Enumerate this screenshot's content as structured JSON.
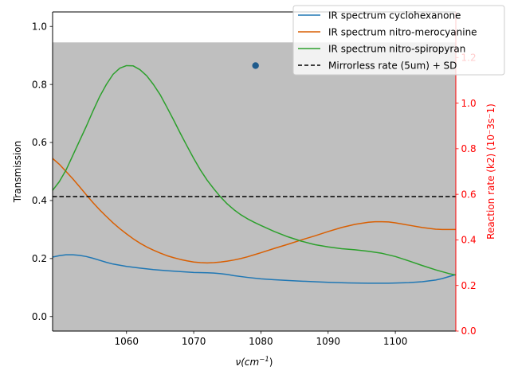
{
  "chart_data": {
    "type": "line",
    "xlabel_base": "ν(cm",
    "xlabel_sup": "−1",
    "xlabel_end": ")",
    "ylabel": "Transmission",
    "ylabel_right": "Reaction rate (k2) (10⁻3s⁻1)",
    "xlim": [
      1049,
      1109
    ],
    "ylim": [
      -0.05,
      1.05
    ],
    "ylim_right": [
      0.0,
      1.4
    ],
    "x_ticks": [
      1060,
      1070,
      1080,
      1090,
      1100
    ],
    "y_ticks": [
      0.0,
      0.2,
      0.4,
      0.6,
      0.8,
      1.0
    ],
    "y_ticks_right": [
      0.0,
      0.2,
      0.4,
      0.6,
      0.8,
      1.0,
      1.2
    ],
    "band": {
      "y_left_range": [
        -0.05,
        0.945
      ],
      "color": "#bfbfbf"
    },
    "legend_position": "top-right",
    "series": [
      {
        "name": "IR spectrum cyclohexanone",
        "color": "#1f77b4",
        "points": [
          [
            1049,
            0.205
          ],
          [
            1050,
            0.21
          ],
          [
            1051,
            0.213
          ],
          [
            1052,
            0.213
          ],
          [
            1053,
            0.211
          ],
          [
            1054,
            0.207
          ],
          [
            1055,
            0.201
          ],
          [
            1056,
            0.194
          ],
          [
            1057,
            0.187
          ],
          [
            1058,
            0.181
          ],
          [
            1059,
            0.177
          ],
          [
            1060,
            0.173
          ],
          [
            1062,
            0.167
          ],
          [
            1064,
            0.162
          ],
          [
            1066,
            0.158
          ],
          [
            1068,
            0.155
          ],
          [
            1070,
            0.152
          ],
          [
            1072,
            0.151
          ],
          [
            1073,
            0.15
          ],
          [
            1074,
            0.148
          ],
          [
            1075,
            0.145
          ],
          [
            1076,
            0.141
          ],
          [
            1078,
            0.135
          ],
          [
            1080,
            0.13
          ],
          [
            1082,
            0.127
          ],
          [
            1085,
            0.123
          ],
          [
            1088,
            0.12
          ],
          [
            1090,
            0.118
          ],
          [
            1093,
            0.116
          ],
          [
            1096,
            0.115
          ],
          [
            1099,
            0.115
          ],
          [
            1102,
            0.117
          ],
          [
            1104,
            0.12
          ],
          [
            1106,
            0.126
          ],
          [
            1107,
            0.131
          ],
          [
            1108,
            0.138
          ],
          [
            1109,
            0.145
          ]
        ]
      },
      {
        "name": "IR spectrum nitro-merocyanine",
        "color": "#d95f02",
        "points": [
          [
            1049,
            0.545
          ],
          [
            1050,
            0.525
          ],
          [
            1051,
            0.5
          ],
          [
            1052,
            0.475
          ],
          [
            1053,
            0.448
          ],
          [
            1054,
            0.42
          ],
          [
            1055,
            0.393
          ],
          [
            1056,
            0.368
          ],
          [
            1057,
            0.345
          ],
          [
            1058,
            0.323
          ],
          [
            1059,
            0.303
          ],
          [
            1060,
            0.285
          ],
          [
            1061,
            0.268
          ],
          [
            1062,
            0.253
          ],
          [
            1063,
            0.24
          ],
          [
            1064,
            0.229
          ],
          [
            1065,
            0.219
          ],
          [
            1066,
            0.21
          ],
          [
            1067,
            0.203
          ],
          [
            1068,
            0.197
          ],
          [
            1069,
            0.192
          ],
          [
            1070,
            0.188
          ],
          [
            1071,
            0.186
          ],
          [
            1072,
            0.185
          ],
          [
            1073,
            0.186
          ],
          [
            1074,
            0.188
          ],
          [
            1075,
            0.191
          ],
          [
            1076,
            0.195
          ],
          [
            1077,
            0.2
          ],
          [
            1078,
            0.206
          ],
          [
            1079,
            0.213
          ],
          [
            1080,
            0.22
          ],
          [
            1082,
            0.235
          ],
          [
            1084,
            0.249
          ],
          [
            1086,
            0.264
          ],
          [
            1088,
            0.278
          ],
          [
            1090,
            0.293
          ],
          [
            1092,
            0.307
          ],
          [
            1094,
            0.318
          ],
          [
            1096,
            0.325
          ],
          [
            1097,
            0.327
          ],
          [
            1098,
            0.327
          ],
          [
            1099,
            0.326
          ],
          [
            1100,
            0.323
          ],
          [
            1102,
            0.315
          ],
          [
            1104,
            0.307
          ],
          [
            1106,
            0.301
          ],
          [
            1107,
            0.3
          ],
          [
            1108,
            0.3
          ],
          [
            1109,
            0.3
          ]
        ]
      },
      {
        "name": "IR spectrum nitro-spiropyran",
        "color": "#2ca02c",
        "points": [
          [
            1049,
            0.435
          ],
          [
            1050,
            0.465
          ],
          [
            1051,
            0.505
          ],
          [
            1052,
            0.555
          ],
          [
            1053,
            0.605
          ],
          [
            1054,
            0.655
          ],
          [
            1055,
            0.708
          ],
          [
            1056,
            0.758
          ],
          [
            1057,
            0.8
          ],
          [
            1058,
            0.835
          ],
          [
            1059,
            0.856
          ],
          [
            1060,
            0.865
          ],
          [
            1061,
            0.864
          ],
          [
            1062,
            0.851
          ],
          [
            1063,
            0.83
          ],
          [
            1064,
            0.8
          ],
          [
            1065,
            0.765
          ],
          [
            1066,
            0.722
          ],
          [
            1067,
            0.678
          ],
          [
            1068,
            0.632
          ],
          [
            1069,
            0.588
          ],
          [
            1070,
            0.545
          ],
          [
            1071,
            0.505
          ],
          [
            1072,
            0.47
          ],
          [
            1073,
            0.44
          ],
          [
            1074,
            0.412
          ],
          [
            1075,
            0.388
          ],
          [
            1076,
            0.368
          ],
          [
            1077,
            0.351
          ],
          [
            1078,
            0.337
          ],
          [
            1079,
            0.325
          ],
          [
            1080,
            0.314
          ],
          [
            1082,
            0.293
          ],
          [
            1084,
            0.275
          ],
          [
            1086,
            0.26
          ],
          [
            1088,
            0.248
          ],
          [
            1090,
            0.24
          ],
          [
            1092,
            0.234
          ],
          [
            1094,
            0.23
          ],
          [
            1096,
            0.225
          ],
          [
            1098,
            0.218
          ],
          [
            1100,
            0.207
          ],
          [
            1102,
            0.192
          ],
          [
            1104,
            0.176
          ],
          [
            1106,
            0.161
          ],
          [
            1108,
            0.148
          ],
          [
            1109,
            0.143
          ]
        ]
      }
    ],
    "hline": {
      "name": "Mirrorless rate (5um) + SD",
      "y_right": 0.59,
      "color": "#000000",
      "style": "dashed"
    },
    "scatter_point": {
      "x": 1079.2,
      "y": 0.865,
      "color": "#1f5b8c"
    }
  }
}
